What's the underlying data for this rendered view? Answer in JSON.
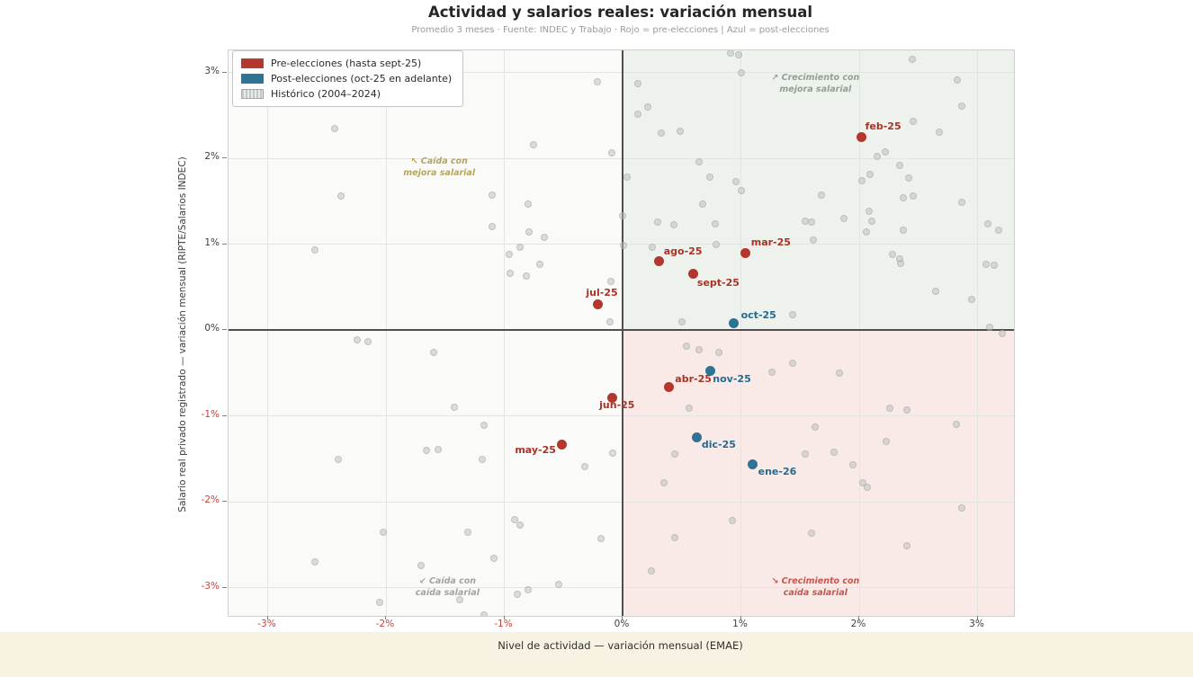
{
  "chart": {
    "title": "Actividad y salarios reales: variación mensual",
    "subtitle": "Promedio 3 meses · Fuente: INDEC y Trabajo · Rojo = pre-elecciones  |  Azul = post-elecciones",
    "xlabel": "Nivel de actividad — variación mensual (EMAE)",
    "ylabel": "Salario real privado registrado — variación mensual (RIPTE/Salarios INDEC)"
  },
  "legend": {
    "items": [
      {
        "label": "Pre-elecciones (hasta sept-25)",
        "color": "#b5362c",
        "hatched": false
      },
      {
        "label": "Post-elecciones (oct-25 en adelante)",
        "color": "#2e7396",
        "hatched": false
      },
      {
        "label": "Histórico (2004–2024)",
        "color": "#c2c7c7",
        "hatched": true
      }
    ]
  },
  "chart_data": {
    "type": "scatter",
    "title": "Actividad y salarios reales: variación mensual",
    "xlabel": "Nivel de actividad — variación mensual (EMAE)",
    "ylabel": "Salario real privado registrado — variación mensual (RIPTE/Salarios INDEC)",
    "xlim": [
      -3.33,
      3.31
    ],
    "ylim": [
      -3.33,
      3.26
    ],
    "grid": true,
    "legend_position": "upper left",
    "colors": {
      "tick_negative": "#c3423a",
      "tick_normal": "#3d3d3d",
      "zero_line": "#4f4f4f"
    },
    "quadrants": {
      "top_right": "#edf2ec",
      "bottom_right": "#f9e9e7",
      "top_left": "#fafaf9",
      "bottom_left": "#fafaf9"
    },
    "x_ticks": [
      {
        "v": -3,
        "label": "-3%",
        "neg": true
      },
      {
        "v": -2,
        "label": "-2%",
        "neg": true
      },
      {
        "v": -1,
        "label": "-1%",
        "neg": true
      },
      {
        "v": 0,
        "label": "0%",
        "neg": false
      },
      {
        "v": 1,
        "label": "1%",
        "neg": false
      },
      {
        "v": 2,
        "label": "2%",
        "neg": false
      },
      {
        "v": 3,
        "label": "3%",
        "neg": false
      }
    ],
    "y_ticks": [
      {
        "v": 3,
        "label": "3%",
        "neg": false
      },
      {
        "v": 2,
        "label": "2%",
        "neg": false
      },
      {
        "v": 1,
        "label": "1%",
        "neg": false
      },
      {
        "v": 0,
        "label": "0%",
        "neg": false
      },
      {
        "v": -1,
        "label": "-1%",
        "neg": true
      },
      {
        "v": -2,
        "label": "-2%",
        "neg": true
      },
      {
        "v": -3,
        "label": "-3%",
        "neg": true
      }
    ],
    "annotations": [
      {
        "lines": [
          "↗ Crecimiento con",
          "mejora salarial"
        ],
        "x": 1.63,
        "y": 2.87,
        "color": "#949e94"
      },
      {
        "lines": [
          "↖ Caída con",
          "mejora salarial"
        ],
        "x": -1.55,
        "y": 1.9,
        "color": "#b3a75f"
      },
      {
        "lines": [
          "↙ Caída con",
          "caída salarial"
        ],
        "x": -1.48,
        "y": -2.99,
        "color": "#a3a3a3"
      },
      {
        "lines": [
          "↘ Crecimiento con",
          "caída salarial"
        ],
        "x": 1.63,
        "y": -2.99,
        "color": "#c4574d"
      }
    ],
    "series": [
      {
        "name": "Pre-elecciones (hasta sept-25)",
        "color": "#b5362c",
        "label_color": "#a93226",
        "points": [
          {
            "label": "feb-25",
            "x": 2.02,
            "y": 2.25,
            "dx": 4,
            "dy": -18,
            "anchor": "left"
          },
          {
            "label": "mar-25",
            "x": 1.04,
            "y": 0.9,
            "dx": 6,
            "dy": -18,
            "anchor": "left"
          },
          {
            "label": "ago-25",
            "x": 0.31,
            "y": 0.8,
            "dx": 5,
            "dy": -18,
            "anchor": "left"
          },
          {
            "label": "sept-25",
            "x": 0.6,
            "y": 0.65,
            "dx": 4,
            "dy": 3,
            "anchor": "left"
          },
          {
            "label": "jul-25",
            "x": -0.21,
            "y": 0.3,
            "dx": -13,
            "dy": -19,
            "anchor": "left"
          },
          {
            "label": "abr-25",
            "x": 0.39,
            "y": -0.67,
            "dx": 7,
            "dy": -16,
            "anchor": "left"
          },
          {
            "label": "jun-25",
            "x": -0.09,
            "y": -0.79,
            "dx": -14,
            "dy": 2,
            "anchor": "left"
          },
          {
            "label": "may-25",
            "x": -0.51,
            "y": -1.33,
            "dx": -7,
            "dy": 0,
            "anchor": "right"
          }
        ]
      },
      {
        "name": "Post-elecciones (oct-25 en adelante)",
        "color": "#2e7396",
        "label_color": "#246a8f",
        "points": [
          {
            "label": "oct-25",
            "x": 0.94,
            "y": 0.08,
            "dx": 8,
            "dy": -15,
            "anchor": "left"
          },
          {
            "label": "nov-25",
            "x": 0.74,
            "y": -0.48,
            "dx": 3,
            "dy": 2,
            "anchor": "left"
          },
          {
            "label": "dic-25",
            "x": 0.63,
            "y": -1.25,
            "dx": 5,
            "dy": 2,
            "anchor": "left"
          },
          {
            "label": "ene-26",
            "x": 1.1,
            "y": -1.57,
            "dx": 6,
            "dy": 1,
            "anchor": "left"
          }
        ]
      },
      {
        "name": "Histórico (2004–2024)",
        "type": "historical",
        "color": "#c2c7c7",
        "points": [
          [
            -0.21,
            2.89
          ],
          [
            0.13,
            2.87
          ],
          [
            0.91,
            3.23
          ],
          [
            0.98,
            3.2
          ],
          [
            1.0,
            2.99
          ],
          [
            2.45,
            3.15
          ],
          [
            2.83,
            2.91
          ],
          [
            2.87,
            2.61
          ],
          [
            2.46,
            2.43
          ],
          [
            2.68,
            2.3
          ],
          [
            0.21,
            2.6
          ],
          [
            0.13,
            2.51
          ],
          [
            0.33,
            2.29
          ],
          [
            0.49,
            2.31
          ],
          [
            -2.43,
            2.35
          ],
          [
            -0.75,
            2.16
          ],
          [
            -0.09,
            2.06
          ],
          [
            2.22,
            2.07
          ],
          [
            2.15,
            2.02
          ],
          [
            2.34,
            1.92
          ],
          [
            2.09,
            1.81
          ],
          [
            2.02,
            1.74
          ],
          [
            2.42,
            1.77
          ],
          [
            -2.38,
            1.56
          ],
          [
            -1.1,
            1.57
          ],
          [
            1.68,
            1.57
          ],
          [
            2.37,
            1.54
          ],
          [
            2.46,
            1.56
          ],
          [
            2.87,
            1.49
          ],
          [
            0.65,
            1.96
          ],
          [
            0.04,
            1.78
          ],
          [
            0.74,
            1.78
          ],
          [
            0.96,
            1.73
          ],
          [
            1.0,
            1.62
          ],
          [
            0.68,
            1.47
          ],
          [
            -0.8,
            1.47
          ],
          [
            2.08,
            1.38
          ],
          [
            1.54,
            1.27
          ],
          [
            1.6,
            1.26
          ],
          [
            1.87,
            1.3
          ],
          [
            2.11,
            1.27
          ],
          [
            2.06,
            1.14
          ],
          [
            2.37,
            1.16
          ],
          [
            3.09,
            1.24
          ],
          [
            3.18,
            1.16
          ],
          [
            1.61,
            1.05
          ],
          [
            -1.1,
            1.2
          ],
          [
            0.0,
            1.33
          ],
          [
            0.3,
            1.26
          ],
          [
            0.43,
            1.23
          ],
          [
            0.78,
            1.24
          ],
          [
            -0.79,
            1.14
          ],
          [
            -0.66,
            1.08
          ],
          [
            -0.87,
            0.96
          ],
          [
            -0.96,
            0.88
          ],
          [
            -0.7,
            0.76
          ],
          [
            0.01,
            0.98
          ],
          [
            0.25,
            0.96
          ],
          [
            0.79,
            0.99
          ],
          [
            2.28,
            0.88
          ],
          [
            2.34,
            0.83
          ],
          [
            2.35,
            0.77
          ],
          [
            3.07,
            0.76
          ],
          [
            3.14,
            0.75
          ],
          [
            -0.95,
            0.66
          ],
          [
            -0.81,
            0.63
          ],
          [
            -0.1,
            0.57
          ],
          [
            -2.6,
            0.93
          ],
          [
            2.65,
            0.45
          ],
          [
            2.95,
            0.36
          ],
          [
            1.44,
            0.18
          ],
          [
            3.1,
            0.03
          ],
          [
            -0.11,
            0.09
          ],
          [
            0.5,
            0.09
          ],
          [
            3.21,
            -0.04
          ],
          [
            -2.24,
            -0.12
          ],
          [
            -2.15,
            -0.14
          ],
          [
            -1.6,
            -0.26
          ],
          [
            0.54,
            -0.19
          ],
          [
            0.65,
            -0.23
          ],
          [
            0.81,
            -0.26
          ],
          [
            1.44,
            -0.39
          ],
          [
            1.26,
            -0.49
          ],
          [
            1.83,
            -0.5
          ],
          [
            -1.42,
            -0.9
          ],
          [
            0.56,
            -0.91
          ],
          [
            2.26,
            -0.91
          ],
          [
            2.4,
            -0.93
          ],
          [
            -1.17,
            -1.11
          ],
          [
            2.82,
            -1.1
          ],
          [
            1.63,
            -1.13
          ],
          [
            -1.66,
            -1.4
          ],
          [
            -1.56,
            -1.39
          ],
          [
            -1.19,
            -1.51
          ],
          [
            -2.4,
            -1.51
          ],
          [
            -0.32,
            -1.59
          ],
          [
            -0.08,
            -1.43
          ],
          [
            2.23,
            -1.3
          ],
          [
            0.44,
            -1.44
          ],
          [
            1.54,
            -1.44
          ],
          [
            1.79,
            -1.42
          ],
          [
            1.95,
            -1.57
          ],
          [
            0.35,
            -1.78
          ],
          [
            2.03,
            -1.78
          ],
          [
            2.07,
            -1.83
          ],
          [
            -0.91,
            -2.21
          ],
          [
            -0.87,
            -2.27
          ],
          [
            -2.02,
            -2.36
          ],
          [
            -1.31,
            -2.36
          ],
          [
            -0.18,
            -2.43
          ],
          [
            2.87,
            -2.07
          ],
          [
            0.93,
            -2.22
          ],
          [
            -1.09,
            -2.66
          ],
          [
            -2.6,
            -2.7
          ],
          [
            -1.7,
            -2.74
          ],
          [
            0.44,
            -2.42
          ],
          [
            1.6,
            -2.37
          ],
          [
            2.4,
            -2.51
          ],
          [
            -0.54,
            -2.96
          ],
          [
            -0.89,
            -3.08
          ],
          [
            -0.8,
            -3.03
          ],
          [
            -2.05,
            -3.17
          ],
          [
            -1.38,
            -3.14
          ],
          [
            0.24,
            -2.81
          ],
          [
            -1.17,
            -3.32
          ]
        ]
      }
    ]
  }
}
